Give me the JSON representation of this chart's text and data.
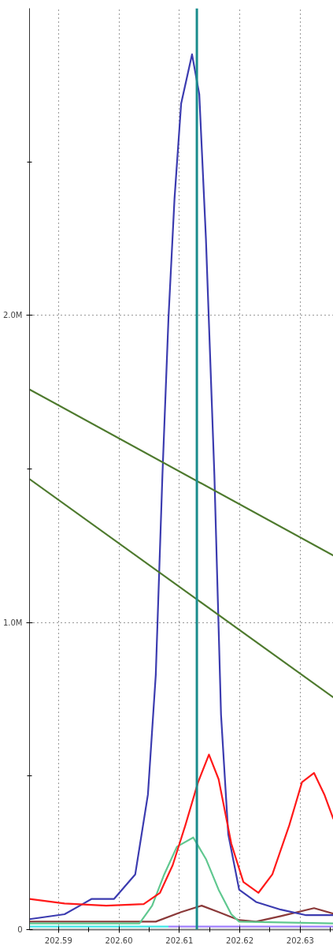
{
  "chart_data": {
    "type": "line",
    "xlim": [
      202.5852,
      202.6355
    ],
    "ylim": [
      0,
      3000000
    ],
    "xticks": [
      {
        "value": 202.59,
        "label": "202.59"
      },
      {
        "value": 202.595,
        "label": null
      },
      {
        "value": 202.6,
        "label": "202.60"
      },
      {
        "value": 202.605,
        "label": null
      },
      {
        "value": 202.61,
        "label": "202.61"
      },
      {
        "value": 202.615,
        "label": null
      },
      {
        "value": 202.62,
        "label": "202.62"
      },
      {
        "value": 202.625,
        "label": null
      },
      {
        "value": 202.63,
        "label": "202.63"
      },
      {
        "value": 202.635,
        "label": null
      }
    ],
    "yticks": [
      0,
      {
        "value": 500000,
        "label": null
      },
      {
        "value": 1000000,
        "label": "1.0M"
      },
      {
        "value": 1500000,
        "label": null
      },
      {
        "value": 2000000,
        "label": "2.0M"
      },
      {
        "value": 2500000,
        "label": null
      }
    ],
    "grid": true,
    "marker": "none",
    "line_style": "solid",
    "ref_lines": [
      {
        "axis": "x",
        "value": 202.6129,
        "label": null,
        "color": "#1a8c8c"
      }
    ],
    "series": [
      {
        "color": "#40e8e8",
        "x": [
          202.5852,
          202.6082
        ],
        "values": [
          10000,
          10000
        ]
      },
      {
        "color": "#a080ff",
        "x": [
          202.6082,
          202.6355
        ],
        "values": [
          10000,
          10000
        ]
      },
      {
        "color": "#8b3a3a",
        "x": [
          202.5852,
          202.6061,
          202.6103,
          202.6137,
          202.6165,
          202.6199,
          202.6227,
          202.6268,
          202.6323,
          202.6355
        ],
        "values": [
          26000,
          26000,
          57000,
          78000,
          57000,
          31000,
          26000,
          44000,
          70000,
          52000
        ]
      },
      {
        "color": "#60c890",
        "x": [
          202.5852,
          202.6034,
          202.6055,
          202.6075,
          202.6096,
          202.6123,
          202.6144,
          202.6165,
          202.6186,
          202.6199,
          202.6355
        ],
        "values": [
          20000,
          20000,
          78000,
          180000,
          270000,
          300000,
          230000,
          130000,
          50000,
          26000,
          20000
        ]
      },
      {
        "color": "#3c3cb0",
        "x": [
          202.5852,
          202.591,
          202.5937,
          202.5955,
          202.5992,
          202.6027,
          202.6048,
          202.6061,
          202.6072,
          202.6082,
          202.6092,
          202.6103,
          202.6121,
          202.6133,
          202.6144,
          202.6158,
          202.6169,
          202.6181,
          202.6199,
          202.6227,
          202.6268,
          202.631,
          202.6355
        ],
        "values": [
          34000,
          50000,
          80000,
          100000,
          100000,
          180000,
          440000,
          830000,
          1480000,
          1990000,
          2380000,
          2690000,
          2850000,
          2720000,
          2250000,
          1480000,
          700000,
          310000,
          130000,
          90000,
          65000,
          47000,
          47000
        ]
      },
      {
        "color": "#ff1a1a",
        "x": [
          202.5852,
          202.591,
          202.5979,
          202.6041,
          202.6068,
          202.6089,
          202.611,
          202.6131,
          202.6149,
          202.6165,
          202.6186,
          202.6206,
          202.6231,
          202.6254,
          202.6282,
          202.6303,
          202.6323,
          202.634,
          202.6355
        ],
        "values": [
          100000,
          85000,
          78000,
          83000,
          120000,
          210000,
          340000,
          480000,
          570000,
          490000,
          280000,
          155000,
          120000,
          180000,
          340000,
          480000,
          510000,
          440000,
          360000
        ]
      },
      {
        "color": "#4e7a2e",
        "x": [
          202.5852,
          202.6355
        ],
        "values": [
          1759000,
          1218000
        ]
      },
      {
        "color": "#4e7a2e",
        "x": [
          202.5852,
          202.6355
        ],
        "values": [
          1467000,
          756000
        ]
      }
    ]
  }
}
